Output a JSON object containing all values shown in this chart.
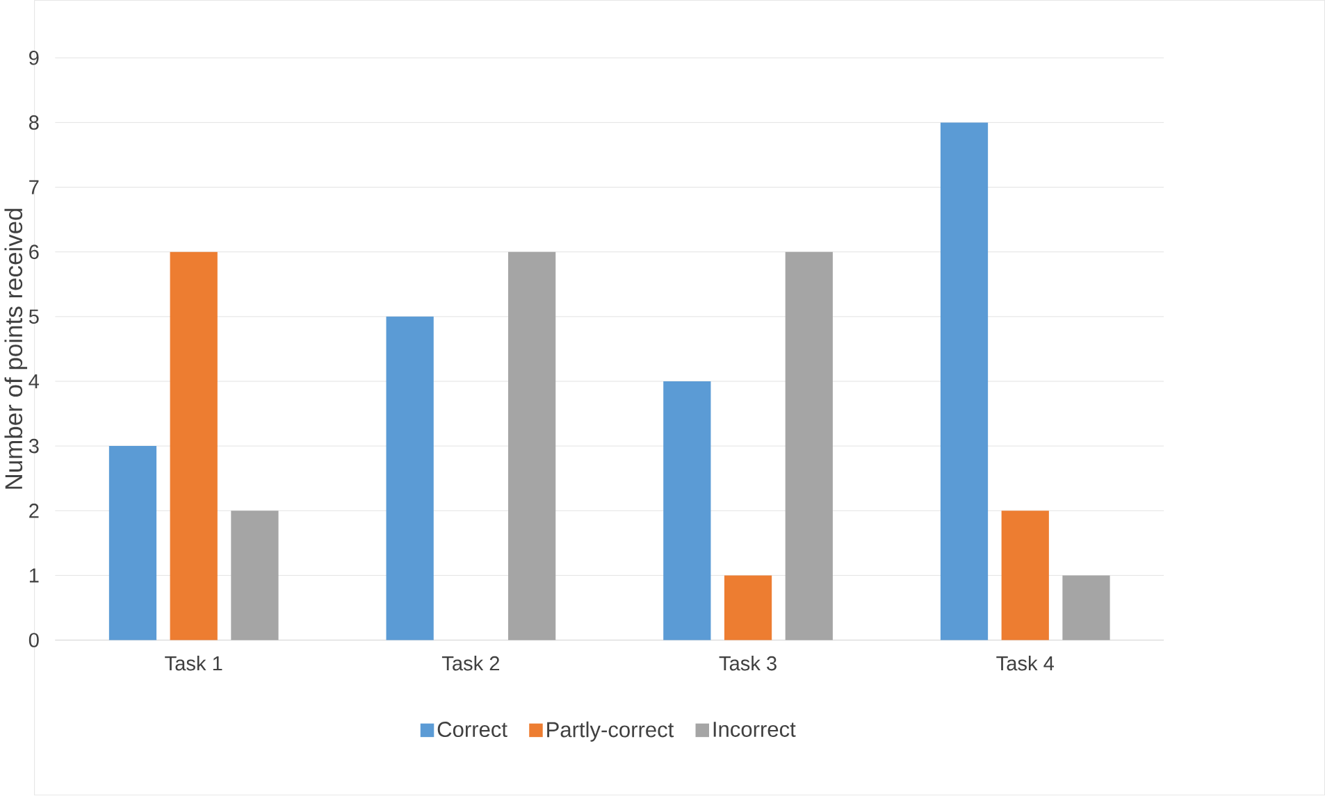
{
  "chart_data": {
    "type": "bar",
    "ylabel": "Number of points received",
    "categories": [
      "Task 1",
      "Task 2",
      "Task 3",
      "Task 4"
    ],
    "series": [
      {
        "name": "Correct",
        "color": "#5b9bd5",
        "values": [
          3,
          5,
          4,
          8
        ]
      },
      {
        "name": "Partly-correct",
        "color": "#ed7d31",
        "values": [
          6,
          0,
          1,
          2
        ]
      },
      {
        "name": "Incorrect",
        "color": "#a5a5a5",
        "values": [
          2,
          6,
          6,
          1
        ]
      }
    ],
    "ylim": [
      0,
      9
    ],
    "yticks": [
      0,
      1,
      2,
      3,
      4,
      5,
      6,
      7,
      8,
      9
    ],
    "grid": "y",
    "legend": "bottom"
  }
}
